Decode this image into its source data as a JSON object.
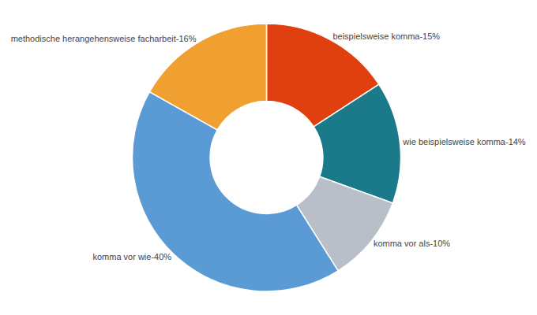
{
  "chart_data": {
    "type": "pie",
    "categories": [
      "beispielsweise komma-15%",
      "wie beispielsweise komma-14%",
      "komma vor als-10%",
      "komma vor wie-40%",
      "methodische herangehensweise facharbeit-16%"
    ],
    "values": [
      15,
      14,
      10,
      40,
      16
    ],
    "colors": [
      "#E04010",
      "#1A7A8A",
      "#B8BFC8",
      "#5B9BD5",
      "#F0A030"
    ]
  }
}
